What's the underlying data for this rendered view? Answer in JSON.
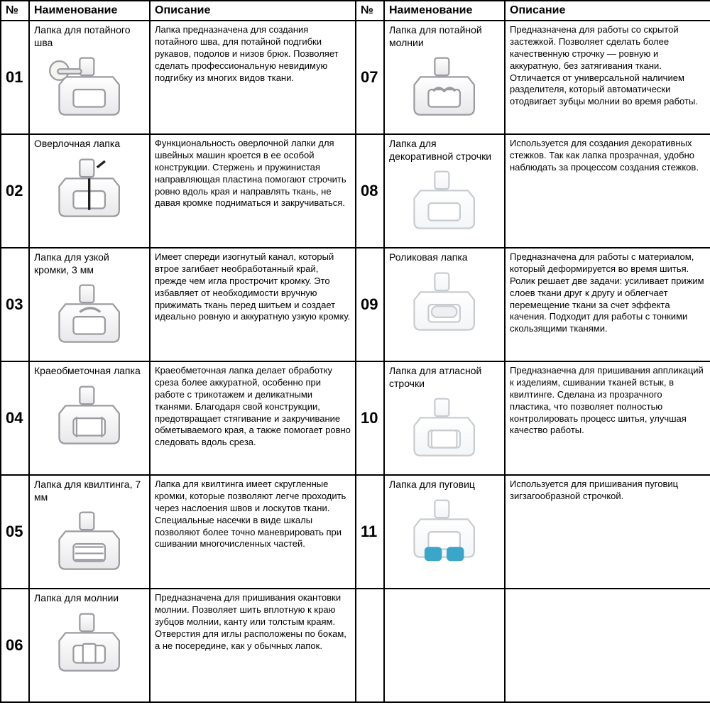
{
  "headers": {
    "num": "№",
    "name": "Наименование",
    "desc": "Описание"
  },
  "rows_left": [
    {
      "num": "01",
      "name": "Лапка для потайного шва",
      "desc": "Лапка предназначена для создания потайного шва,  для потайной подгибки рукавов, подолов и низов брюк. Позволяет сделать профессиональную невидимую подгибку из многих видов ткани."
    },
    {
      "num": "02",
      "name": "Оверлочная лапка",
      "desc": "Функциональность оверлочной лапки для швейных машин кроется в ее особой конструкции. Стержень и пружинистая направляющая пластина помогают строчить ровно вдоль края и направлять ткань, не давая кромке подниматься и закручиваться."
    },
    {
      "num": "03",
      "name": "Лапка для узкой кромки, 3 мм",
      "desc": "Имеет спереди изогнутый канал, который втрое загибает необработанный край, прежде чем игла прострочит кромку. Это избавляет от необходимости вручную прижимать ткань перед шитьем и создает идеально ровную и аккуратную узкую кромку."
    },
    {
      "num": "04",
      "name": "Краеобметочная лапка",
      "desc": "Краеобметочная лапка делает обработку среза более аккуратной, особенно при работе с трикотажем и деликатными тканями. Благодаря свой конструкции, предотвращает стягивание и закручивание обметываемого края, а также помогает ровно следовать вдоль среза."
    },
    {
      "num": "05",
      "name": "Лапка для квилтинга, 7 мм",
      "desc": "Лапка для квилтинга имеет скругленные кромки, которые позволяют легче проходить через наслоения швов и лоскутов ткани. Специальные насечки в виде шкалы позволяют более точно маневрировать при сшивании многочисленных частей."
    },
    {
      "num": "06",
      "name": "Лапка для молнии",
      "desc": "Предназначена для пришивания окантовки молнии. Позволяет шить вплотную к краю зубцов молнии, канту или толстым краям. Отверстия для иглы расположены по бокам, а не посередине, как у обычных лапок."
    }
  ],
  "rows_right": [
    {
      "num": "07",
      "name": "Лапка для потайной молнии",
      "desc": "Предназначена для работы со скрытой застежкой. Позволяет сделать более качественную строчку — ровную и аккуратную, без затягивания ткани. Отличается от универсальной наличием разделителя, который автоматически отодвигает зубцы молнии во время работы."
    },
    {
      "num": "08",
      "name": "Лапка для декоративной строчки",
      "desc": "Используется для создания декоративных стежков. Так как лапка прозрачная, удобно наблюдать за процессом создания стежков."
    },
    {
      "num": "09",
      "name": "Роликовая лапка",
      "desc": "Предназначена для работы с материалом, который деформируется во время шитья. Ролик решает две задачи: усиливает прижим слоев ткани друг к другу и облегчает перемещение ткани за счет эффекта качения. Подходит для работы с тонкими скользящими тканями."
    },
    {
      "num": "10",
      "name": "Лапка для атласной строчки",
      "desc": "Предназнаечна для пришивания аппликаций к изделиям, сшивании тканей встык, в квилтинге. Сделана из прозрачного пластика, что позволяет полностью контролировать процесс шитья, улучшая качество работы."
    },
    {
      "num": "11",
      "name": "Лапка для пуговиц",
      "desc": "Используется для пришивания пуговиц зигзагообразной строчкой."
    },
    {
      "num": "",
      "name": "",
      "desc": ""
    }
  ],
  "style": {
    "border_color": "#000000",
    "background": "#ffffff",
    "header_fontsize": 16,
    "num_fontsize": 22,
    "name_fontsize": 14,
    "desc_fontsize": 13,
    "icon_metal_fill": "#e8e8ea",
    "icon_metal_stroke": "#9a9aa0",
    "icon_clear_fill": "#f3f5f7",
    "icon_clear_stroke": "#c8ccd0",
    "icon_accent": "#3aa6c9"
  }
}
